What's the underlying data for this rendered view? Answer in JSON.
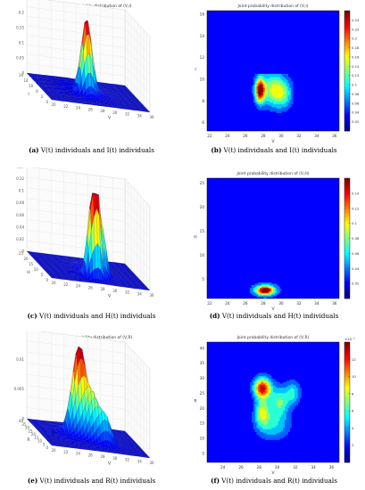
{
  "figure": {
    "panels": [
      {
        "id": "a",
        "label": "(a)",
        "caption": "V(t) individuals and I(t) individuals",
        "title": "Joint probability distribution of (V,I)",
        "kind": "surface",
        "zticks": [
          "0",
          "0.05",
          "0.1",
          "0.15",
          "0.2",
          "0.25"
        ],
        "xticks": [
          "20",
          "22",
          "24",
          "26",
          "28",
          "30",
          "32",
          "34",
          "36"
        ],
        "yticks": [
          "0",
          "2",
          "6",
          "10",
          "14",
          "16"
        ],
        "xlabel": "V",
        "ylabel": "I"
      },
      {
        "id": "b",
        "label": "(b)",
        "caption": "V(t) individuals and I(t) individuals",
        "title": "Joint probability distribution of (V,I)",
        "kind": "contour",
        "xticks": [
          "22",
          "24",
          "26",
          "28",
          "30",
          "32",
          "34",
          "36"
        ],
        "yticks": [
          "6",
          "8",
          "10",
          "12",
          "14",
          "16"
        ],
        "cbticks": [
          "0.02",
          "0.04",
          "0.06",
          "0.08",
          "0.1",
          "0.12",
          "0.14",
          "0.16",
          "0.18",
          "0.2",
          "0.22",
          "0.24"
        ],
        "xlabel": "V",
        "ylabel": "I"
      },
      {
        "id": "c",
        "label": "(c)",
        "caption": "V(t) individuals and H(t) individuals",
        "title": "",
        "kind": "surface",
        "zticks": [
          "0",
          "0.02",
          "0.04",
          "0.06",
          "0.08",
          "0.1",
          "0.12",
          "0.14"
        ],
        "xticks": [
          "20",
          "22",
          "24",
          "26",
          "28",
          "30",
          "32",
          "34",
          "36"
        ],
        "yticks": [
          "0",
          "5",
          "10",
          "15",
          "20",
          "25"
        ],
        "xlabel": "V",
        "ylabel": "H"
      },
      {
        "id": "d",
        "label": "(d)",
        "caption": "V(t) individuals and H(t) individuals",
        "title": "Joint probability distribution of (V,H)",
        "kind": "contour",
        "xticks": [
          "22",
          "24",
          "26",
          "28",
          "30",
          "32",
          "34",
          "36"
        ],
        "yticks": [
          "5",
          "10",
          "15",
          "20",
          "25"
        ],
        "cbticks": [
          "0.02",
          "0.04",
          "0.06",
          "0.08",
          "0.1",
          "0.12",
          "0.14"
        ],
        "xlabel": "V",
        "ylabel": "H"
      },
      {
        "id": "e",
        "label": "(e)",
        "caption": "V(t) individuals and R(t) individuals",
        "title": "Joint probability distribution of (V,R)",
        "kind": "surface",
        "zticks": [
          "0",
          "0.005",
          "0.01",
          "0.015"
        ],
        "xticks": [
          "20",
          "22",
          "24",
          "26",
          "28",
          "30",
          "32",
          "34",
          "36"
        ],
        "yticks": [
          "0",
          "5",
          "10",
          "15",
          "20",
          "25",
          "30",
          "35",
          "40"
        ],
        "xlabel": "V",
        "ylabel": "R"
      },
      {
        "id": "f",
        "label": "(f)",
        "caption": "V(t) individuals and R(t) individuals",
        "title": "Joint probability distribution of (V,R)",
        "kind": "contour",
        "xticks": [
          "24",
          "26",
          "28",
          "30",
          "32",
          "34",
          "36"
        ],
        "yticks": [
          "5",
          "10",
          "15",
          "20",
          "25",
          "30",
          "35",
          "40"
        ],
        "cbticks": [
          "2",
          "4",
          "6",
          "8",
          "10",
          "12"
        ],
        "cbexp": "×10⁻³",
        "xlabel": "V",
        "ylabel": "R"
      }
    ]
  },
  "chart_data": [
    {
      "type": "heatmap",
      "title": "Joint probability distribution of (V,I)",
      "xlabel": "V",
      "ylabel": "I",
      "zlim": [
        0,
        0.25
      ],
      "peak": {
        "V": 28,
        "I": 9,
        "p": 0.24
      }
    },
    {
      "type": "heatmap",
      "title": "Joint probability distribution of (V,I)",
      "xlabel": "V",
      "ylabel": "I",
      "xlim": [
        22,
        37
      ],
      "ylim": [
        5,
        16
      ],
      "peak": {
        "V": 28.2,
        "I": 9,
        "p": 0.24
      }
    },
    {
      "type": "heatmap",
      "title": "",
      "xlabel": "V",
      "ylabel": "H",
      "zlim": [
        0,
        0.14
      ],
      "peak": {
        "V": 28,
        "H": 3,
        "p": 0.14
      }
    },
    {
      "type": "heatmap",
      "title": "Joint probability distribution of (V,H)",
      "xlabel": "V",
      "ylabel": "H",
      "xlim": [
        22,
        37
      ],
      "ylim": [
        1,
        26
      ],
      "peak": {
        "V": 28.5,
        "H": 3,
        "p": 0.14
      }
    },
    {
      "type": "heatmap",
      "title": "Joint probability distribution of (V,R)",
      "xlabel": "V",
      "ylabel": "R",
      "zlim": [
        0,
        0.016
      ],
      "peak": {
        "V": 28,
        "R": 27,
        "p": 0.015
      }
    },
    {
      "type": "heatmap",
      "title": "Joint probability distribution of (V,R)",
      "xlabel": "V",
      "ylabel": "R",
      "xlim": [
        22,
        37
      ],
      "ylim": [
        2,
        42
      ],
      "peak": {
        "V": 28,
        "R": 27,
        "p": 0.013
      }
    }
  ]
}
